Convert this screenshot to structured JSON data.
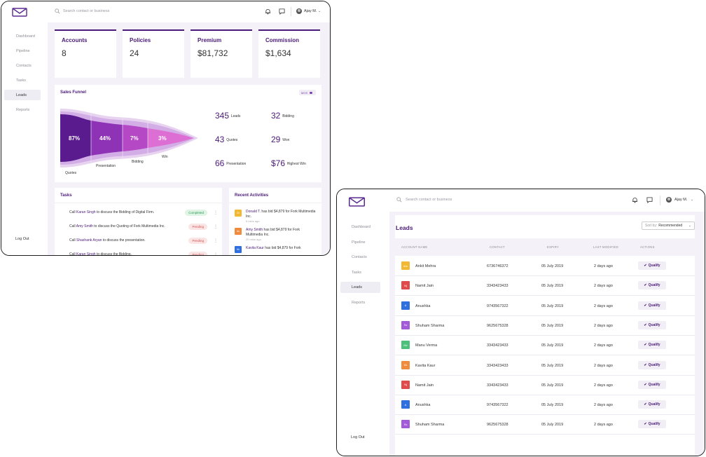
{
  "colors": {
    "brand": "#4a1a78",
    "accent": "#7a3fb0",
    "completed": "#2b9a52",
    "pending": "#d15454"
  },
  "dashboard": {
    "search_placeholder": "Search contact or business",
    "user_name": "Ajay M.",
    "nav": [
      {
        "label": "Dashboard",
        "icon": "grid-icon"
      },
      {
        "label": "Pipeline",
        "icon": "funnel-icon"
      },
      {
        "label": "Contacts",
        "icon": "contacts-icon"
      },
      {
        "label": "Tasks",
        "icon": "check-circle-icon"
      },
      {
        "label": "Leads",
        "icon": "bookmark-icon"
      },
      {
        "label": "Reports",
        "icon": "report-icon"
      }
    ],
    "active_nav": "Leads",
    "logout": "Log Out",
    "stats": [
      {
        "label": "Accounts",
        "value": "8",
        "icon": "folder-plus-icon"
      },
      {
        "label": "Policies",
        "value": "24",
        "icon": "document-icon"
      },
      {
        "label": "Premium",
        "value": "$81,732",
        "icon": "award-icon"
      },
      {
        "label": "Commission",
        "value": "$1,634",
        "icon": "star-icon"
      }
    ],
    "sales_funnel": {
      "title": "Sales Funnel",
      "toggle": "MOS",
      "stages": [
        {
          "pct": "87%",
          "label": "Quotes"
        },
        {
          "pct": "44%",
          "label": "Presentation"
        },
        {
          "pct": "7%",
          "label": "Bidding"
        },
        {
          "pct": "3%",
          "label": "Win"
        }
      ],
      "stats": [
        {
          "value": "345",
          "label": "Leads"
        },
        {
          "value": "32",
          "label": "Bidding"
        },
        {
          "value": "43",
          "label": "Quotes"
        },
        {
          "value": "29",
          "label": "Won"
        },
        {
          "value": "66",
          "label": "Presentation"
        },
        {
          "value": "$76",
          "label": "Highest Win"
        }
      ]
    },
    "tasks": {
      "title": "Tasks",
      "items": [
        {
          "prefix": "Call ",
          "person": "Karan Singh",
          "rest": " to discuss the Bidding of Digital Firm.",
          "status": "Completed",
          "status_kind": "completed"
        },
        {
          "prefix": "Call ",
          "person": "Amy Smith",
          "rest": " to discuss the Quoting of Fork Multimedia Inc.",
          "status": "Pending",
          "status_kind": "pending"
        },
        {
          "prefix": "Call ",
          "person": "Shashank Aryan",
          "rest": " to discuss the presentation.",
          "status": "Pending",
          "status_kind": "pending"
        },
        {
          "prefix": "Call ",
          "person": "Karan Singh",
          "rest": " to discuss the Bidding.",
          "status": "Pending",
          "status_kind": "pending"
        }
      ]
    },
    "activities": {
      "title": "Recent Activities",
      "items": [
        {
          "initials": "Dt",
          "color": "#f2b733",
          "person": "Donald T.",
          "rest": " has bid $4,879 for Fork Multimedia Inc.",
          "time": "5 mins ago"
        },
        {
          "initials": "As",
          "color": "#f08a3c",
          "person": "Amy Smith",
          "rest": " has bid $4,879 for Fork Multimedia Inc.",
          "time": "20 mins ago"
        },
        {
          "initials": "Kk",
          "color": "#2f6fe0",
          "person": "Kavita Kaur",
          "rest": " has bid $4,879 for Fork",
          "time": ""
        }
      ]
    }
  },
  "leads_page": {
    "search_placeholder": "Search contact or business",
    "user_name": "Ajay M.",
    "nav": [
      {
        "label": "Dashboard",
        "icon": "grid-icon"
      },
      {
        "label": "Pipeline",
        "icon": "funnel-icon"
      },
      {
        "label": "Contacts",
        "icon": "contacts-icon"
      },
      {
        "label": "Tasks",
        "icon": "check-circle-icon"
      },
      {
        "label": "Leads",
        "icon": "bookmark-icon"
      },
      {
        "label": "Reports",
        "icon": "report-icon"
      }
    ],
    "logout": "Log Out",
    "title": "Leads",
    "sort_label": "Sort by:",
    "sort_value": "Recommended",
    "columns": [
      "ACCOUNT NAME",
      "CONTACT",
      "EXPIRY",
      "LAST MODIFIED",
      "ACTIONS"
    ],
    "qualify_label": "Qualify",
    "rows": [
      {
        "initials": "Am",
        "color": "#f2b733",
        "name": "Ankit Mehra",
        "contact": "6736746372",
        "expiry": "05 July 2019",
        "modified": "2 days ago"
      },
      {
        "initials": "Nj",
        "color": "#e04a4a",
        "name": "Namit Jain",
        "contact": "3343423433",
        "expiry": "05 July 2019",
        "modified": "2 days ago"
      },
      {
        "initials": "A",
        "color": "#2f6fe0",
        "name": "Anushka",
        "contact": "9743567322",
        "expiry": "05 July 2019",
        "modified": "2 days ago"
      },
      {
        "initials": "Ss",
        "color": "#a25ad9",
        "name": "Shuham Sharma",
        "contact": "9625675328",
        "expiry": "05 July 2019",
        "modified": "2 days ago"
      },
      {
        "initials": "Mv",
        "color": "#4cc07a",
        "name": "Manu Verma",
        "contact": "3343423433",
        "expiry": "05 July 2019",
        "modified": "2 days ago"
      },
      {
        "initials": "Kk",
        "color": "#f08a3c",
        "name": "Kavita Kaur",
        "contact": "3343423433",
        "expiry": "05 July 2019",
        "modified": "2 days ago"
      },
      {
        "initials": "Nj",
        "color": "#e04a4a",
        "name": "Namit Jain",
        "contact": "3343423433",
        "expiry": "05 July 2019",
        "modified": "2 days ago"
      },
      {
        "initials": "A",
        "color": "#2f6fe0",
        "name": "Anushka",
        "contact": "9743567322",
        "expiry": "05 July 2019",
        "modified": "2 days ago"
      },
      {
        "initials": "Ss",
        "color": "#a25ad9",
        "name": "Shuham Sharma",
        "contact": "9625675328",
        "expiry": "05 July 2019",
        "modified": "2 days ago"
      }
    ]
  }
}
